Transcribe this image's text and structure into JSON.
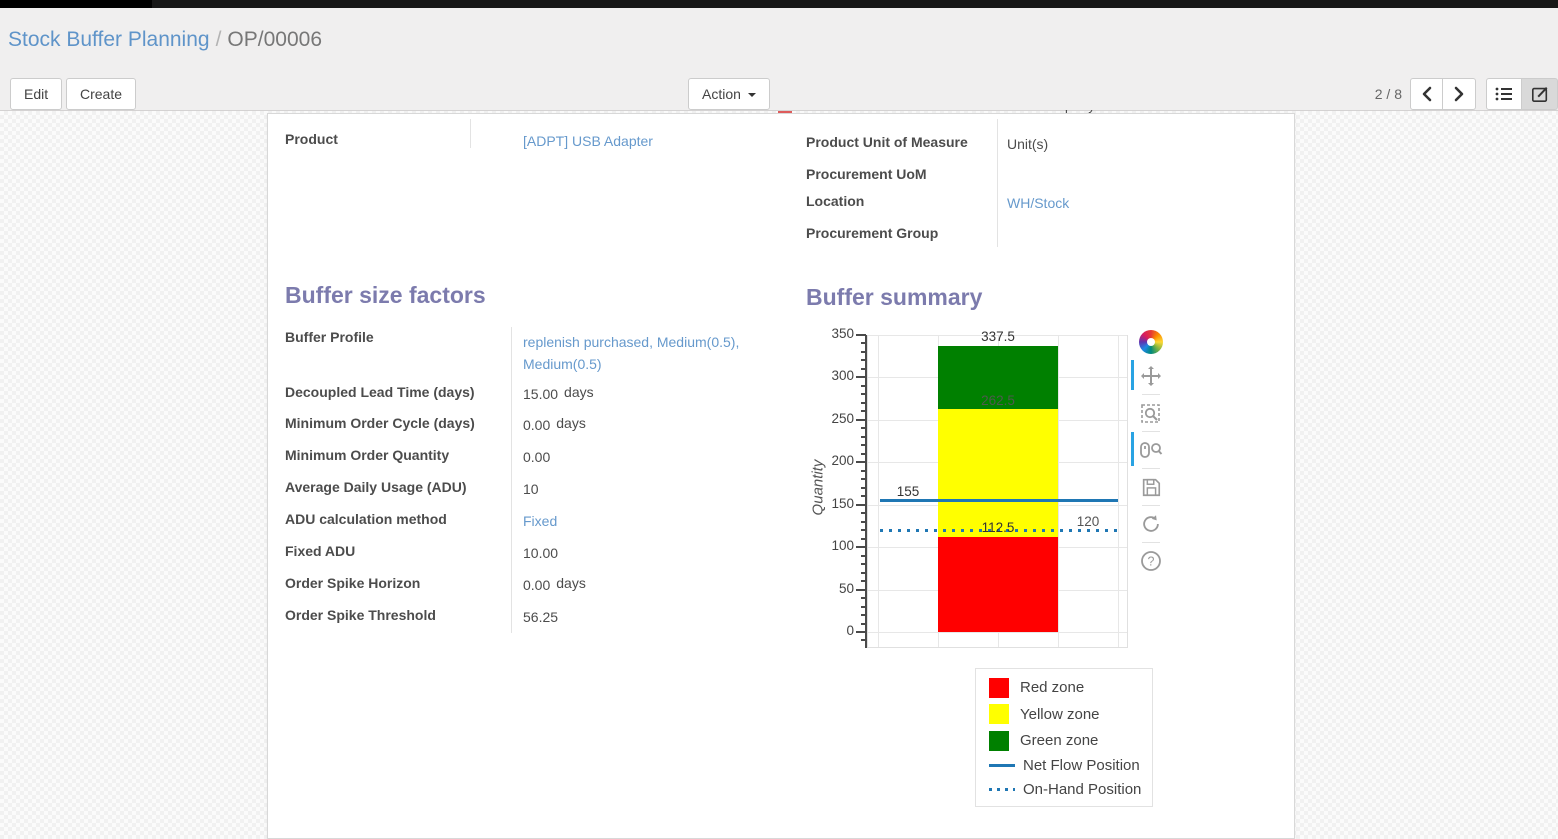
{
  "breadcrumb": {
    "section": "Stock Buffer Planning",
    "separator": "/",
    "record": "OP/00006"
  },
  "buttons": {
    "edit": "Edit",
    "create": "Create",
    "action": "Action"
  },
  "pager": {
    "counter": "2 / 8"
  },
  "record": {
    "clipped_company_value": "YourCompany",
    "left_fields": [
      {
        "label": "Product",
        "value": "[ADPT] USB Adapter",
        "is_link": true
      }
    ],
    "right_fields": [
      {
        "label": "Product Unit of Measure",
        "value": "Unit(s)",
        "is_link": false
      },
      {
        "label": "Procurement UoM",
        "value": "",
        "is_link": false
      },
      {
        "label": "Location",
        "value": "WH/Stock",
        "is_link": true
      },
      {
        "label": "Procurement Group",
        "value": "",
        "is_link": false
      }
    ]
  },
  "buffer_factors": {
    "title": "Buffer size factors",
    "rows": [
      {
        "label": "Buffer Profile",
        "value": "replenish purchased, Medium(0.5), Medium(0.5)",
        "unit": "",
        "is_link": true
      },
      {
        "label": "Decoupled Lead Time (days)",
        "value": "15.00",
        "unit": "days",
        "is_link": false
      },
      {
        "label": "Minimum Order Cycle (days)",
        "value": "0.00",
        "unit": "days",
        "is_link": false
      },
      {
        "label": "Minimum Order Quantity",
        "value": "0.00",
        "unit": "",
        "is_link": false
      },
      {
        "label": "Average Daily Usage (ADU)",
        "value": "10",
        "unit": "",
        "is_link": false
      },
      {
        "label": "ADU calculation method",
        "value": "Fixed",
        "unit": "",
        "is_link": true
      },
      {
        "label": "Fixed ADU",
        "value": "10.00",
        "unit": "",
        "is_link": false
      },
      {
        "label": "Order Spike Horizon",
        "value": "0.00",
        "unit": "days",
        "is_link": false
      },
      {
        "label": "Order Spike Threshold",
        "value": "56.25",
        "unit": "",
        "is_link": false
      }
    ]
  },
  "buffer_summary": {
    "title": "Buffer summary"
  },
  "chart_data": {
    "type": "bar",
    "title": "Buffer summary",
    "xlabel": "",
    "ylabel": "Quantity",
    "ylim": [
      0,
      350
    ],
    "yticks": [
      0,
      50,
      100,
      150,
      200,
      250,
      300,
      350
    ],
    "minor_tick_step": 10,
    "grid": true,
    "zones": [
      {
        "name": "Red zone",
        "from": 0,
        "to": 112.5,
        "color": "#ff0000"
      },
      {
        "name": "Yellow zone",
        "from": 112.5,
        "to": 262.5,
        "color": "#ffff00"
      },
      {
        "name": "Green zone",
        "from": 262.5,
        "to": 337.5,
        "color": "#008000"
      }
    ],
    "lines": [
      {
        "name": "Net Flow Position",
        "value": 155,
        "style": "solid",
        "color": "#1f77b4"
      },
      {
        "name": "On-Hand Position",
        "value": 120,
        "style": "dotted",
        "color": "#1f77b4"
      }
    ],
    "annotations": [
      {
        "text": "337.5",
        "value": 337.5,
        "color": "#333333",
        "align": "center"
      },
      {
        "text": "262.5",
        "value": 262.5,
        "color": "#4d5a4d",
        "align": "center"
      },
      {
        "text": "155",
        "value": 155,
        "color": "#333333",
        "align": "left"
      },
      {
        "text": "112.5",
        "value": 112.5,
        "color": "#333333",
        "align": "center"
      },
      {
        "text": "120",
        "value": 120,
        "color": "#555555",
        "align": "right"
      }
    ],
    "legend": {
      "position": "bottom-right",
      "entries": [
        {
          "label": "Red zone",
          "swatch": "square",
          "color": "#ff0000"
        },
        {
          "label": "Yellow zone",
          "swatch": "square",
          "color": "#ffff00"
        },
        {
          "label": "Green zone",
          "swatch": "square",
          "color": "#008000"
        },
        {
          "label": "Net Flow Position",
          "swatch": "line-solid",
          "color": "#1f77b4"
        },
        {
          "label": "On-Hand Position",
          "swatch": "line-dotted",
          "color": "#1f77b4"
        }
      ]
    },
    "toolbar_tools": [
      "bokeh-logo",
      "pan",
      "box-zoom",
      "wheel-zoom",
      "save",
      "reset",
      "help"
    ],
    "active_tools": [
      "pan",
      "wheel-zoom"
    ]
  },
  "colors": {
    "accent": "#7c7bad",
    "link": "#6699cc",
    "net_flow": "#1f77b4"
  }
}
